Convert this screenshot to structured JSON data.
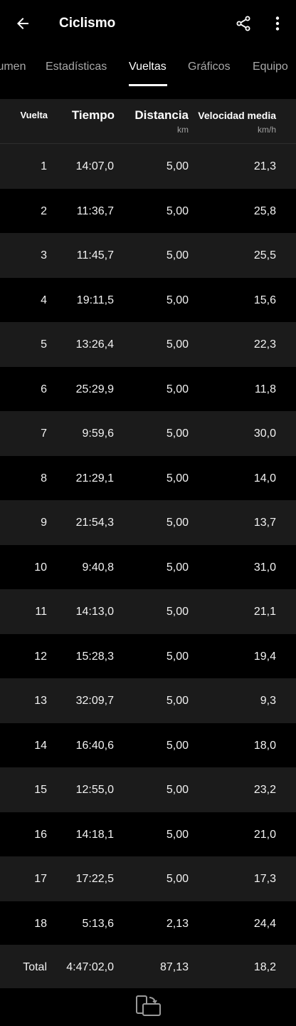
{
  "app_bar": {
    "title": "Ciclismo",
    "back_icon": "arrow-left-icon",
    "share_icon": "share-icon",
    "more_icon": "more-vertical-icon"
  },
  "tabs": [
    {
      "label": "Resumen",
      "active": false
    },
    {
      "label": "Estadísticas",
      "active": false
    },
    {
      "label": "Vueltas",
      "active": true
    },
    {
      "label": "Gráficos",
      "active": false
    },
    {
      "label": "Equipo",
      "active": false
    }
  ],
  "table": {
    "headers": {
      "lap": "Vuelta",
      "time": "Tiempo",
      "distance": "Distancia",
      "distance_unit": "km",
      "speed": "Velocidad media",
      "speed_unit": "km/h"
    },
    "rows": [
      {
        "lap": "1",
        "time": "14:07,0",
        "distance": "5,00",
        "speed": "21,3"
      },
      {
        "lap": "2",
        "time": "11:36,7",
        "distance": "5,00",
        "speed": "25,8"
      },
      {
        "lap": "3",
        "time": "11:45,7",
        "distance": "5,00",
        "speed": "25,5"
      },
      {
        "lap": "4",
        "time": "19:11,5",
        "distance": "5,00",
        "speed": "15,6"
      },
      {
        "lap": "5",
        "time": "13:26,4",
        "distance": "5,00",
        "speed": "22,3"
      },
      {
        "lap": "6",
        "time": "25:29,9",
        "distance": "5,00",
        "speed": "11,8"
      },
      {
        "lap": "7",
        "time": "9:59,6",
        "distance": "5,00",
        "speed": "30,0"
      },
      {
        "lap": "8",
        "time": "21:29,1",
        "distance": "5,00",
        "speed": "14,0"
      },
      {
        "lap": "9",
        "time": "21:54,3",
        "distance": "5,00",
        "speed": "13,7"
      },
      {
        "lap": "10",
        "time": "9:40,8",
        "distance": "5,00",
        "speed": "31,0"
      },
      {
        "lap": "11",
        "time": "14:13,0",
        "distance": "5,00",
        "speed": "21,1"
      },
      {
        "lap": "12",
        "time": "15:28,3",
        "distance": "5,00",
        "speed": "19,4"
      },
      {
        "lap": "13",
        "time": "32:09,7",
        "distance": "5,00",
        "speed": "9,3"
      },
      {
        "lap": "14",
        "time": "16:40,6",
        "distance": "5,00",
        "speed": "18,0"
      },
      {
        "lap": "15",
        "time": "12:55,0",
        "distance": "5,00",
        "speed": "23,2"
      },
      {
        "lap": "16",
        "time": "14:18,1",
        "distance": "5,00",
        "speed": "21,0"
      },
      {
        "lap": "17",
        "time": "17:22,5",
        "distance": "5,00",
        "speed": "17,3"
      },
      {
        "lap": "18",
        "time": "5:13,6",
        "distance": "2,13",
        "speed": "24,4"
      }
    ],
    "total": {
      "lap": "Total",
      "time": "4:47:02,0",
      "distance": "87,13",
      "speed": "18,2"
    }
  },
  "bottom_bar": {
    "rotate_icon": "screen-rotation-icon"
  },
  "colors": {
    "background": "#000000",
    "row_alt": "#1b1b1b",
    "text": "#ffffff",
    "secondary_text": "#a8a8a8"
  }
}
